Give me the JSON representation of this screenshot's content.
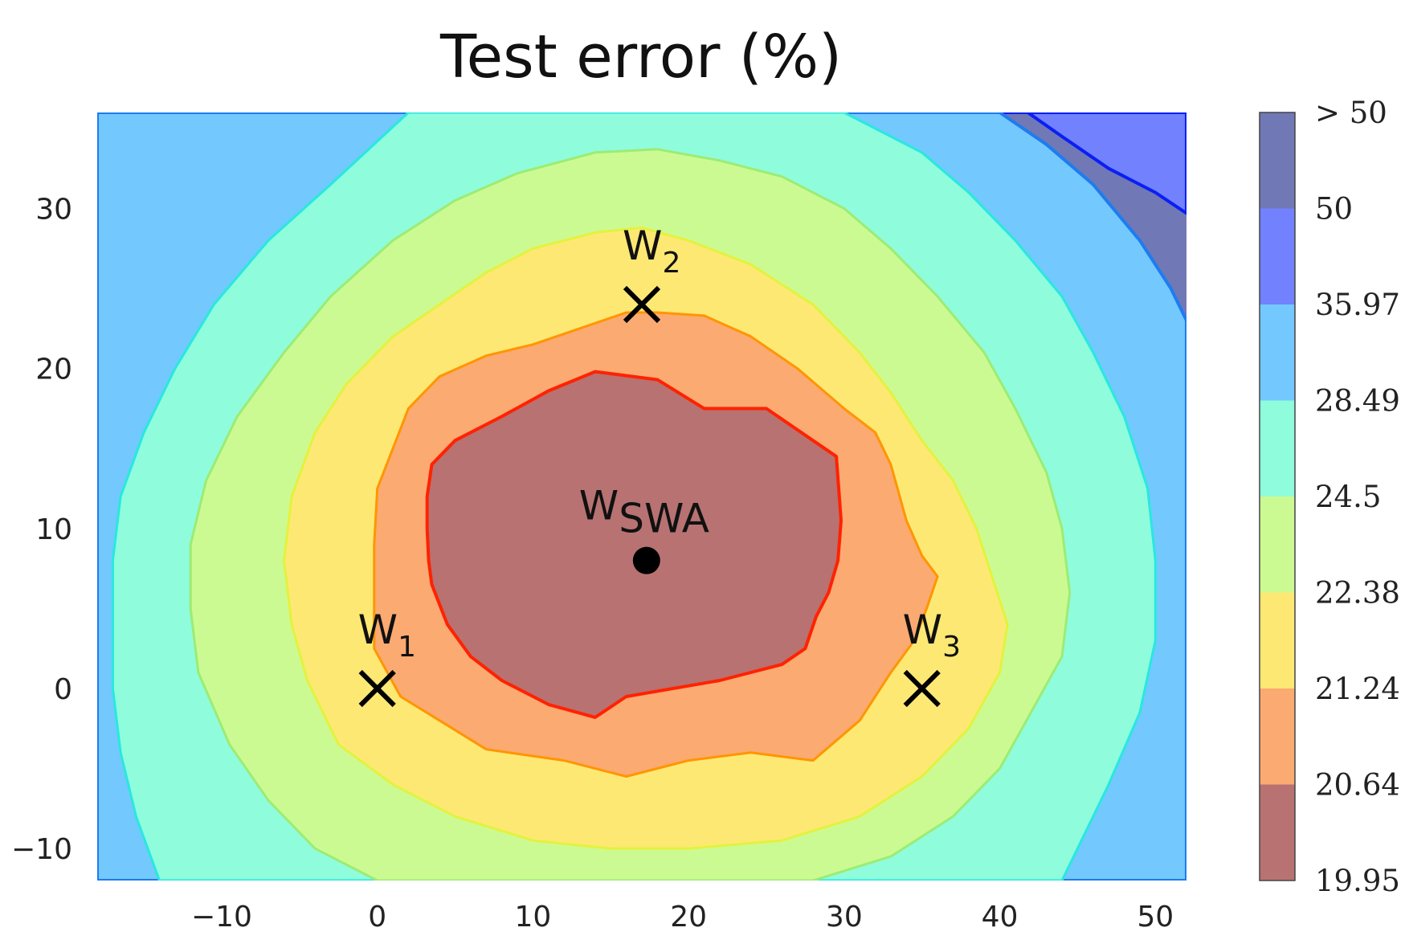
{
  "chart_data": {
    "type": "contour",
    "title": "Test error (%)",
    "xlabel": "",
    "ylabel": "",
    "xlim": [
      -18,
      52
    ],
    "ylim": [
      -12,
      36
    ],
    "x_ticks": [
      -10,
      0,
      10,
      20,
      30,
      40,
      50
    ],
    "y_ticks": [
      -10,
      0,
      10,
      20,
      30
    ],
    "x_tick_labels": [
      "−10",
      "0",
      "10",
      "20",
      "30",
      "40",
      "50"
    ],
    "y_tick_labels": [
      "−10",
      "0",
      "10",
      "20",
      "30"
    ],
    "levels": [
      19.95,
      20.64,
      21.24,
      22.38,
      24.5,
      28.49,
      35.97,
      50
    ],
    "colorbar_labels": [
      "> 50",
      "50",
      "35.97",
      "28.49",
      "24.5",
      "22.38",
      "21.24",
      "20.64",
      "19.95"
    ],
    "band_colors": [
      "#b87272",
      "#fbaa72",
      "#fde874",
      "#ccfa92",
      "#8ffcdc",
      "#73c8fd",
      "#7281fd",
      "#7078b6"
    ],
    "line_colors": [
      "#ff2200",
      "#ff9500",
      "#e3f23e",
      "#9cec74",
      "#28e8e0",
      "#1e7cf0",
      "#0a1ef5"
    ],
    "points": [
      {
        "label": "W",
        "sub": "1",
        "x": 0,
        "y": 0,
        "marker": "x"
      },
      {
        "label": "W",
        "sub": "2",
        "x": 17,
        "y": 24,
        "marker": "x"
      },
      {
        "label": "W",
        "sub": "3",
        "x": 35,
        "y": 0,
        "marker": "x"
      },
      {
        "label": "W",
        "sub": "SWA",
        "x": 17.3,
        "y": 8,
        "marker": "dot"
      }
    ],
    "regions": {
      "r19_95": [
        [
          14,
          19.8
        ],
        [
          18,
          19.3
        ],
        [
          21,
          17.5
        ],
        [
          25,
          17.5
        ],
        [
          28,
          15.5
        ],
        [
          29.5,
          14.5
        ],
        [
          29.8,
          10.5
        ],
        [
          29.6,
          8
        ],
        [
          29,
          6
        ],
        [
          28.2,
          4.5
        ],
        [
          27.5,
          2.5
        ],
        [
          26,
          1.5
        ],
        [
          22,
          0.5
        ],
        [
          16,
          -0.5
        ],
        [
          14,
          -1.8
        ],
        [
          11,
          -1
        ],
        [
          8,
          0.5
        ],
        [
          6,
          2
        ],
        [
          4.5,
          4
        ],
        [
          3.5,
          6.5
        ],
        [
          3.3,
          8
        ],
        [
          3.2,
          10
        ],
        [
          3.2,
          12
        ],
        [
          3.5,
          14
        ],
        [
          5,
          15.5
        ],
        [
          8,
          17
        ],
        [
          11,
          18.6
        ]
      ],
      "r20_64": [
        [
          16,
          23.5
        ],
        [
          18,
          23.5
        ],
        [
          21,
          23.3
        ],
        [
          24,
          22
        ],
        [
          27,
          20
        ],
        [
          30,
          17.5
        ],
        [
          32,
          16
        ],
        [
          33,
          14
        ],
        [
          34,
          10.5
        ],
        [
          35,
          8.3
        ],
        [
          36,
          7
        ],
        [
          35.3,
          5
        ],
        [
          34.5,
          3
        ],
        [
          33,
          1
        ],
        [
          31,
          -2
        ],
        [
          28,
          -4.5
        ],
        [
          24,
          -4
        ],
        [
          20,
          -4.5
        ],
        [
          16,
          -5.5
        ],
        [
          12,
          -4.5
        ],
        [
          7,
          -3.8
        ],
        [
          4,
          -2
        ],
        [
          1.5,
          -0.5
        ],
        [
          -0.2,
          2.5
        ],
        [
          -0.2,
          6
        ],
        [
          -0.2,
          9
        ],
        [
          0,
          12.5
        ],
        [
          1,
          15
        ],
        [
          2,
          17.5
        ],
        [
          4,
          19.5
        ],
        [
          7,
          20.8
        ],
        [
          10,
          21.5
        ],
        [
          13,
          22.5
        ]
      ],
      "r21_24": [
        [
          14,
          28.5
        ],
        [
          17,
          28.8
        ],
        [
          20,
          28
        ],
        [
          24,
          26.5
        ],
        [
          28,
          24
        ],
        [
          31,
          21
        ],
        [
          33,
          18.5
        ],
        [
          35,
          15.5
        ],
        [
          37,
          13
        ],
        [
          38.5,
          10
        ],
        [
          39.5,
          7
        ],
        [
          40.5,
          4
        ],
        [
          40,
          1
        ],
        [
          38,
          -2.5
        ],
        [
          35,
          -5.5
        ],
        [
          31,
          -8
        ],
        [
          26,
          -9.5
        ],
        [
          20,
          -10
        ],
        [
          15,
          -10
        ],
        [
          10,
          -9.5
        ],
        [
          5,
          -8
        ],
        [
          1,
          -6
        ],
        [
          -2.5,
          -3.5
        ],
        [
          -4.5,
          0.5
        ],
        [
          -5.5,
          4
        ],
        [
          -6,
          8
        ],
        [
          -5.5,
          12
        ],
        [
          -4,
          16
        ],
        [
          -2,
          19
        ],
        [
          1,
          22
        ],
        [
          4,
          24
        ],
        [
          7,
          26
        ],
        [
          10,
          27.5
        ]
      ],
      "r22_38": [
        [
          14,
          33.5
        ],
        [
          18,
          33.7
        ],
        [
          22,
          33
        ],
        [
          26,
          32
        ],
        [
          30,
          30
        ],
        [
          33,
          27.5
        ],
        [
          36,
          24.5
        ],
        [
          39,
          21
        ],
        [
          41,
          17.5
        ],
        [
          43,
          13.5
        ],
        [
          44,
          10
        ],
        [
          44.5,
          6
        ],
        [
          44,
          2
        ],
        [
          42,
          -1.5
        ],
        [
          40,
          -5
        ],
        [
          37,
          -8
        ],
        [
          33,
          -10.5
        ],
        [
          28,
          -12
        ],
        [
          0,
          -12
        ],
        [
          -4,
          -10
        ],
        [
          -7,
          -7
        ],
        [
          -9.5,
          -3.5
        ],
        [
          -11.5,
          1
        ],
        [
          -12,
          5
        ],
        [
          -12,
          9
        ],
        [
          -11,
          13
        ],
        [
          -9,
          17
        ],
        [
          -6,
          21
        ],
        [
          -3,
          24.5
        ],
        [
          1,
          28
        ],
        [
          5,
          30.5
        ],
        [
          9,
          32.2
        ]
      ],
      "r24_5": [
        [
          2,
          36
        ],
        [
          30,
          36
        ],
        [
          35,
          33.5
        ],
        [
          38,
          31
        ],
        [
          41,
          28
        ],
        [
          44,
          24.5
        ],
        [
          46,
          21
        ],
        [
          48,
          17
        ],
        [
          49.5,
          12.5
        ],
        [
          50,
          8
        ],
        [
          50,
          3
        ],
        [
          49,
          -1.5
        ],
        [
          47,
          -6
        ],
        [
          45,
          -10
        ],
        [
          44,
          -12
        ],
        [
          -14,
          -12
        ],
        [
          -15.5,
          -8
        ],
        [
          -16.5,
          -4
        ],
        [
          -17,
          0
        ],
        [
          -17,
          4
        ],
        [
          -17,
          8
        ],
        [
          -16.5,
          12
        ],
        [
          -15,
          16
        ],
        [
          -13,
          20
        ],
        [
          -10.5,
          24
        ],
        [
          -7,
          28
        ],
        [
          -3,
          31.5
        ]
      ],
      "r28_49": [
        [
          -9,
          36
        ],
        [
          40,
          36
        ],
        [
          43,
          34
        ],
        [
          46,
          31.5
        ],
        [
          49,
          28
        ],
        [
          51,
          25
        ],
        [
          52,
          23
        ],
        [
          52,
          -12
        ],
        [
          -18,
          -12
        ],
        [
          -18,
          36
        ]
      ],
      "r35_97": [
        [
          -18,
          27.5
        ],
        [
          -16.5,
          29.5
        ],
        [
          -14,
          32
        ],
        [
          -11,
          34.5
        ],
        [
          -9.3,
          36
        ],
        [
          41.8,
          36
        ],
        [
          44,
          34.5
        ],
        [
          47,
          32.5
        ],
        [
          50,
          31
        ],
        [
          52,
          29.7
        ],
        [
          52,
          36
        ],
        [
          -18,
          36
        ]
      ]
    }
  }
}
